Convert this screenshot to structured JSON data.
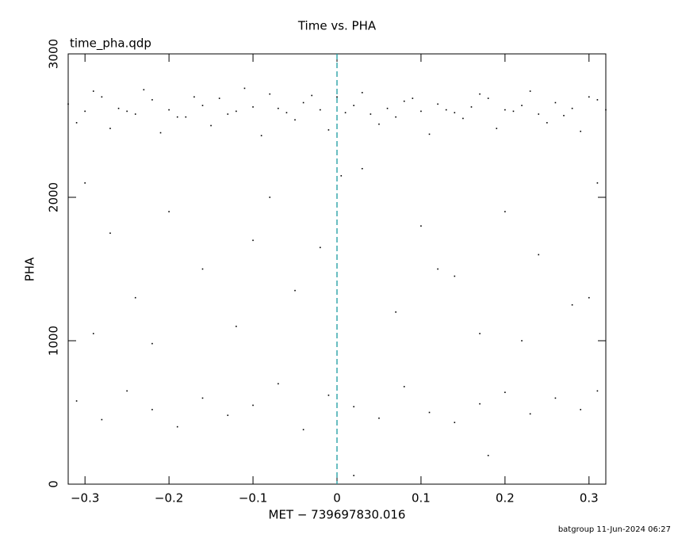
{
  "chart_data": {
    "type": "scatter",
    "title": "Time vs. PHA",
    "subtitle": "time_pha.qdp",
    "x_label": "MET − 739697830.016",
    "y_label": "PHA",
    "footer": "batgroup 11-Jun-2024 06:27",
    "color": "#000000",
    "vline": {
      "x": 0,
      "color": "#1a9aa0"
    },
    "xlim": [
      -0.32,
      0.32
    ],
    "ylim": [
      0,
      3000
    ],
    "xticks": [
      {
        "value": -0.3,
        "label": "−0.3"
      },
      {
        "value": -0.2,
        "label": "−0.2"
      },
      {
        "value": -0.1,
        "label": "−0.1"
      },
      0,
      0.1,
      0.2,
      0.3
    ],
    "yticks": [
      0,
      1000,
      2000,
      3000
    ],
    "x": [
      -0.32,
      -0.3,
      -0.28,
      -0.26,
      -0.24,
      -0.22,
      -0.2,
      -0.18,
      -0.16,
      -0.14,
      -0.12,
      -0.1,
      -0.08,
      -0.06,
      -0.04,
      -0.02,
      0,
      0.02,
      0.04,
      0.06,
      0.08,
      0.1,
      0.12,
      0.14,
      0.16,
      0.18,
      0.2,
      0.22,
      0.24,
      0.26,
      0.28,
      0.3,
      0.32,
      -0.31,
      -0.29,
      -0.27,
      -0.25,
      -0.23,
      -0.21,
      -0.19,
      -0.17,
      -0.15,
      -0.13,
      -0.11,
      -0.09,
      -0.07,
      -0.05,
      -0.03,
      -0.01,
      0.01,
      0.03,
      0.05,
      0.07,
      0.09,
      0.11,
      0.13,
      0.15,
      0.17,
      0.19,
      0.21,
      0.23,
      0.25,
      0.27,
      0.29,
      0.31,
      -0.3,
      -0.27,
      -0.24,
      -0.2,
      -0.16,
      -0.12,
      -0.08,
      -0.05,
      -0.02,
      0.03,
      0.07,
      0.1,
      0.14,
      0.17,
      0.2,
      0.24,
      0.28,
      0.31,
      -0.29,
      -0.22,
      -0.1,
      0.005,
      0.12,
      0.22,
      0.3,
      -0.31,
      -0.28,
      -0.25,
      -0.22,
      -0.19,
      -0.16,
      -0.13,
      -0.1,
      -0.07,
      -0.04,
      -0.01,
      0.02,
      0.05,
      0.08,
      0.11,
      0.14,
      0.17,
      0.2,
      0.23,
      0.26,
      0.29,
      0.31,
      0.18,
      0.02
    ],
    "values": [
      2650,
      2600,
      2700,
      2620,
      2580,
      2680,
      2610,
      2560,
      2640,
      2690,
      2600,
      2630,
      2720,
      2590,
      2660,
      2610,
      2700,
      2640,
      2580,
      2620,
      2670,
      2600,
      2650,
      2590,
      2630,
      2690,
      2610,
      2640,
      2580,
      2660,
      2620,
      2700,
      2610,
      2520,
      2740,
      2480,
      2600,
      2750,
      2450,
      2560,
      2700,
      2500,
      2580,
      2760,
      2430,
      2620,
      2540,
      2710,
      2470,
      2590,
      2730,
      2510,
      2560,
      2690,
      2440,
      2610,
      2550,
      2720,
      2480,
      2600,
      2740,
      2520,
      2570,
      2460,
      2680,
      2100,
      1750,
      1300,
      1900,
      1500,
      1100,
      2000,
      1350,
      1650,
      2200,
      1200,
      1800,
      1450,
      1050,
      1900,
      1600,
      1250,
      2100,
      1050,
      980,
      1700,
      2150,
      1500,
      1000,
      1300,
      580,
      450,
      650,
      520,
      400,
      600,
      480,
      550,
      700,
      380,
      620,
      540,
      460,
      680,
      500,
      430,
      560,
      640,
      490,
      600,
      520,
      650,
      200,
      60
    ]
  }
}
